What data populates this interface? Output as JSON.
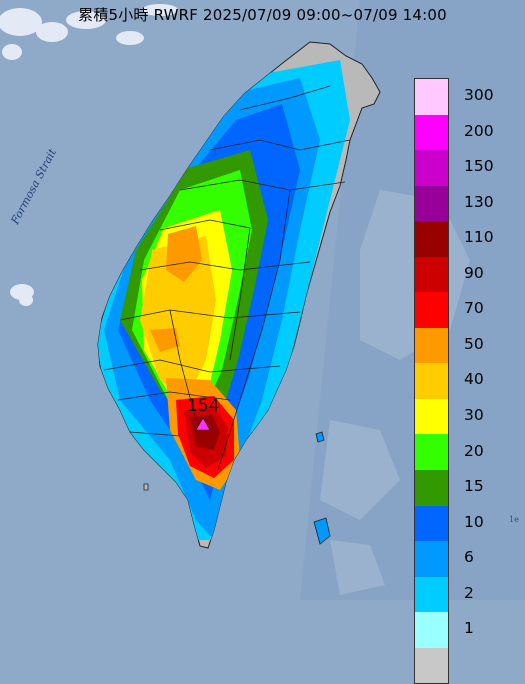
{
  "title": "累積5小時 RWRF 2025/07/09 09:00~07/09 14:00",
  "strait_label": "Formosa Strait",
  "edge_label": "1e",
  "peak": {
    "value": "154",
    "marker_color": "#ff33ff"
  },
  "legend": [
    {
      "label": "300",
      "color": "#ffc8ff"
    },
    {
      "label": "200",
      "color": "#ff00ff"
    },
    {
      "label": "150",
      "color": "#cc00cc"
    },
    {
      "label": "130",
      "color": "#990099"
    },
    {
      "label": "110",
      "color": "#990000"
    },
    {
      "label": "90",
      "color": "#cc0000"
    },
    {
      "label": "70",
      "color": "#ff0000"
    },
    {
      "label": "50",
      "color": "#ff9900"
    },
    {
      "label": "40",
      "color": "#ffcc00"
    },
    {
      "label": "30",
      "color": "#ffff00"
    },
    {
      "label": "20",
      "color": "#33ff00"
    },
    {
      "label": "15",
      "color": "#339900"
    },
    {
      "label": "10",
      "color": "#0066ff"
    },
    {
      "label": "6",
      "color": "#0099ff"
    },
    {
      "label": "2",
      "color": "#00ccff"
    },
    {
      "label": "1",
      "color": "#99ffff"
    },
    {
      "label": "",
      "color": "#c8c8c8"
    }
  ],
  "colors": {
    "sea": "#8fa9c9",
    "land_no_rain": "#b9b9b9",
    "boundary": "#222222"
  }
}
